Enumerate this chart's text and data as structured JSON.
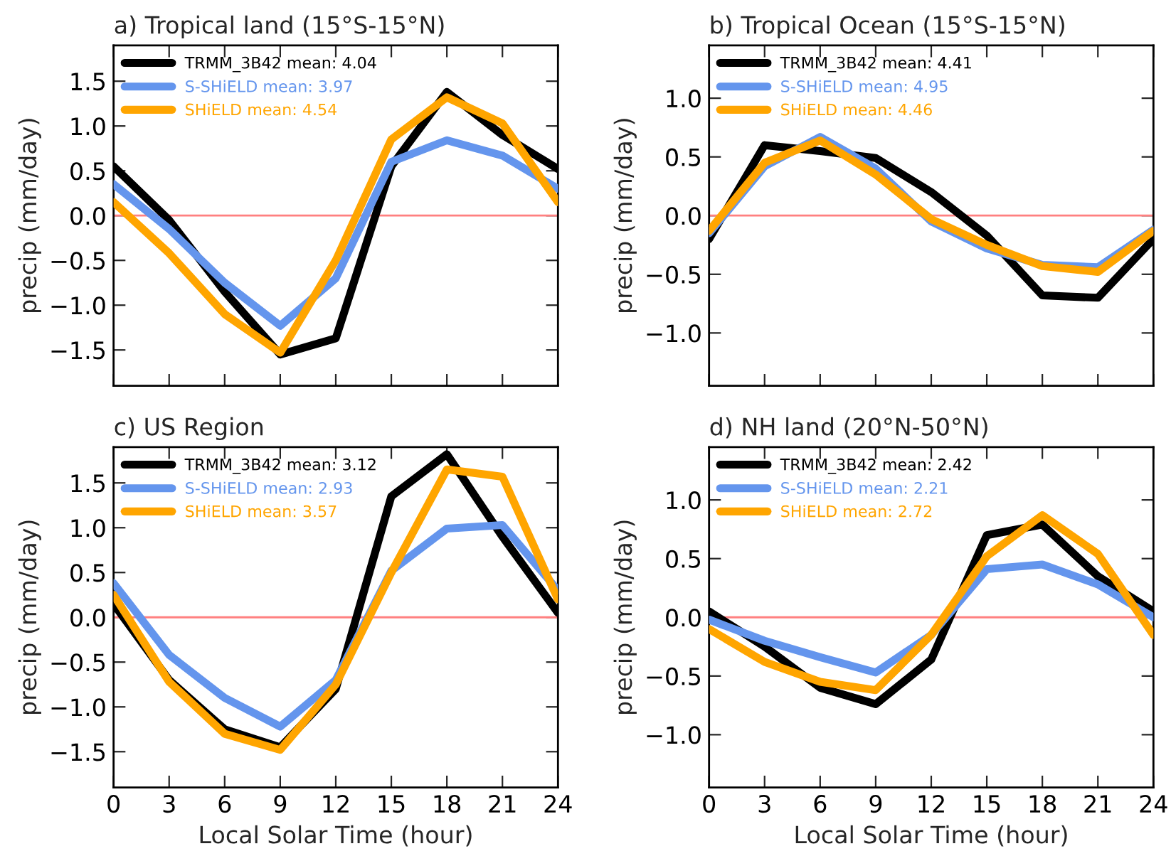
{
  "chart_data": [
    {
      "type": "line",
      "title": "a) Tropical land (15°S-15°N)",
      "ylabel": "precip (mm/day)",
      "x": [
        0,
        3,
        6,
        9,
        12,
        15,
        18,
        21,
        24
      ],
      "xlim": [
        0,
        24
      ],
      "xticks": [
        {
          "value": 0,
          "label": null
        },
        {
          "value": 3,
          "label": null
        },
        {
          "value": 6,
          "label": null
        },
        {
          "value": 9,
          "label": null
        },
        {
          "value": 12,
          "label": null
        },
        {
          "value": 15,
          "label": null
        },
        {
          "value": 18,
          "label": null
        },
        {
          "value": 21,
          "label": null
        },
        {
          "value": 24,
          "label": null
        }
      ],
      "ylim": [
        -1.9,
        1.9
      ],
      "yticks": [
        {
          "value": -1.5,
          "label": "−1.5"
        },
        {
          "value": -1.0,
          "label": "−1.0"
        },
        {
          "value": -0.5,
          "label": "−0.5"
        },
        {
          "value": 0,
          "label": "0.0"
        },
        {
          "value": 0.5,
          "label": "0.5"
        },
        {
          "value": 1,
          "label": "1.0"
        },
        {
          "value": 1.5,
          "label": "1.5"
        }
      ],
      "tick_labels": "y",
      "legend": "top left",
      "grid": false,
      "ref_lines": [
        {
          "axis": "y",
          "value": 0,
          "color": "#ff8080"
        }
      ],
      "series": [
        {
          "name": "TRMM_3B42 mean: 4.04",
          "color": "#000000",
          "values": [
            0.55,
            -0.05,
            -0.85,
            -1.55,
            -1.37,
            0.55,
            1.38,
            0.9,
            0.52
          ]
        },
        {
          "name": "S-SHiELD mean: 3.97",
          "color": "#6495ed",
          "values": [
            0.35,
            -0.15,
            -0.75,
            -1.23,
            -0.7,
            0.6,
            0.84,
            0.67,
            0.3
          ]
        },
        {
          "name": "SHiELD mean: 4.54",
          "color": "#ffa500",
          "values": [
            0.15,
            -0.42,
            -1.1,
            -1.53,
            -0.5,
            0.85,
            1.32,
            1.03,
            0.15
          ]
        }
      ]
    },
    {
      "type": "line",
      "title": "b) Tropical Ocean (15°S-15°N)",
      "ylabel": "precip (mm/day)",
      "x": [
        0,
        3,
        6,
        9,
        12,
        15,
        18,
        21,
        24
      ],
      "xlim": [
        0,
        24
      ],
      "xticks": [
        {
          "value": 0,
          "label": null
        },
        {
          "value": 3,
          "label": null
        },
        {
          "value": 6,
          "label": null
        },
        {
          "value": 9,
          "label": null
        },
        {
          "value": 12,
          "label": null
        },
        {
          "value": 15,
          "label": null
        },
        {
          "value": 18,
          "label": null
        },
        {
          "value": 21,
          "label": null
        },
        {
          "value": 24,
          "label": null
        }
      ],
      "ylim": [
        -1.45,
        1.45
      ],
      "yticks": [
        {
          "value": -1.0,
          "label": "−1.0"
        },
        {
          "value": -0.5,
          "label": "−0.5"
        },
        {
          "value": 0,
          "label": "0.0"
        },
        {
          "value": 0.5,
          "label": "0.5"
        },
        {
          "value": 1,
          "label": "1.0"
        }
      ],
      "tick_labels": "y",
      "legend": "top left",
      "grid": false,
      "ref_lines": [
        {
          "axis": "y",
          "value": 0,
          "color": "#ff8080"
        }
      ],
      "series": [
        {
          "name": "TRMM_3B42 mean: 4.41",
          "color": "#000000",
          "values": [
            -0.2,
            0.6,
            0.55,
            0.49,
            0.2,
            -0.17,
            -0.68,
            -0.7,
            -0.2
          ]
        },
        {
          "name": "S-SHiELD mean: 4.95",
          "color": "#6495ed",
          "values": [
            -0.15,
            0.42,
            0.67,
            0.4,
            -0.05,
            -0.28,
            -0.42,
            -0.44,
            -0.12
          ]
        },
        {
          "name": "SHiELD mean: 4.46",
          "color": "#ffa500",
          "values": [
            -0.13,
            0.45,
            0.64,
            0.35,
            -0.03,
            -0.25,
            -0.43,
            -0.48,
            -0.13
          ]
        }
      ]
    },
    {
      "type": "line",
      "title": "c) US Region",
      "xlabel": "Local Solar Time (hour)",
      "ylabel": "precip (mm/day)",
      "x": [
        0,
        3,
        6,
        9,
        12,
        15,
        18,
        21,
        24
      ],
      "xlim": [
        0,
        24
      ],
      "xticks": [
        0,
        3,
        6,
        9,
        12,
        15,
        18,
        21,
        24
      ],
      "ylim": [
        -1.9,
        1.9
      ],
      "yticks": [
        {
          "value": -1.5,
          "label": "−1.5"
        },
        {
          "value": -1.0,
          "label": "−1.0"
        },
        {
          "value": -0.5,
          "label": "−0.5"
        },
        {
          "value": 0,
          "label": "0.0"
        },
        {
          "value": 0.5,
          "label": "0.5"
        },
        {
          "value": 1,
          "label": "1.0"
        },
        {
          "value": 1.5,
          "label": "1.5"
        }
      ],
      "legend": "top left",
      "grid": false,
      "ref_lines": [
        {
          "axis": "y",
          "value": 0,
          "color": "#ff8080"
        }
      ],
      "series": [
        {
          "name": "TRMM_3B42 mean: 3.12",
          "color": "#000000",
          "values": [
            0.15,
            -0.7,
            -1.25,
            -1.45,
            -0.8,
            1.35,
            1.82,
            0.9,
            0.05
          ]
        },
        {
          "name": "S-SHiELD mean: 2.93",
          "color": "#6495ed",
          "values": [
            0.38,
            -0.42,
            -0.9,
            -1.22,
            -0.7,
            0.52,
            0.99,
            1.03,
            0.3
          ]
        },
        {
          "name": "SHiELD mean: 3.57",
          "color": "#ffa500",
          "values": [
            0.25,
            -0.72,
            -1.3,
            -1.48,
            -0.75,
            0.5,
            1.65,
            1.57,
            0.2
          ]
        }
      ]
    },
    {
      "type": "line",
      "title": "d) NH land (20°N-50°N)",
      "xlabel": "Local Solar Time (hour)",
      "ylabel": "precip (mm/day)",
      "x": [
        0,
        3,
        6,
        9,
        12,
        15,
        18,
        21,
        24
      ],
      "xlim": [
        0,
        24
      ],
      "xticks": [
        0,
        3,
        6,
        9,
        12,
        15,
        18,
        21,
        24
      ],
      "ylim": [
        -1.45,
        1.45
      ],
      "yticks": [
        {
          "value": -1.0,
          "label": "−1.0"
        },
        {
          "value": -0.5,
          "label": "−0.5"
        },
        {
          "value": 0,
          "label": "0.0"
        },
        {
          "value": 0.5,
          "label": "0.5"
        },
        {
          "value": 1,
          "label": "1.0"
        }
      ],
      "legend": "top left",
      "grid": false,
      "ref_lines": [
        {
          "axis": "y",
          "value": 0,
          "color": "#ff8080"
        }
      ],
      "series": [
        {
          "name": "TRMM_3B42 mean: 2.42",
          "color": "#000000",
          "values": [
            0.05,
            -0.25,
            -0.6,
            -0.74,
            -0.36,
            0.7,
            0.79,
            0.35,
            0.05
          ]
        },
        {
          "name": "S-SHiELD mean: 2.21",
          "color": "#6495ed",
          "values": [
            -0.02,
            -0.2,
            -0.34,
            -0.47,
            -0.15,
            0.41,
            0.45,
            0.28,
            0.0
          ]
        },
        {
          "name": "SHiELD mean: 2.72",
          "color": "#ffa500",
          "values": [
            -0.1,
            -0.38,
            -0.55,
            -0.62,
            -0.15,
            0.52,
            0.87,
            0.54,
            -0.15
          ]
        }
      ]
    }
  ]
}
